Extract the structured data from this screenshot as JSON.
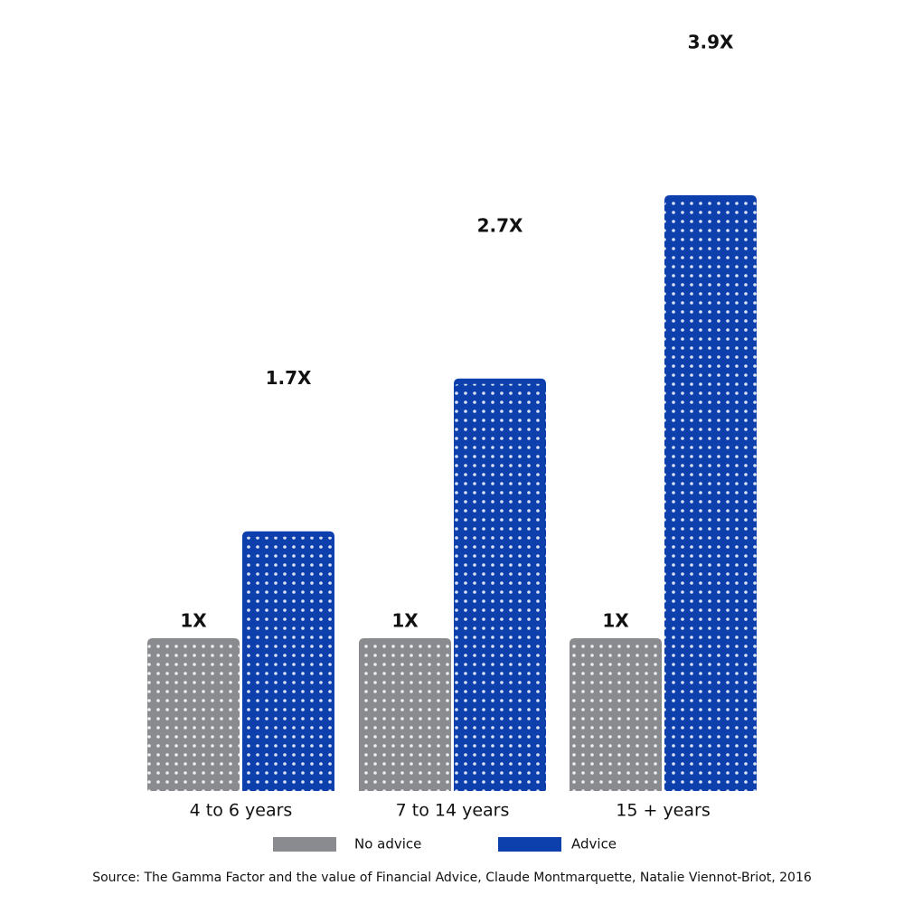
{
  "chart_data": {
    "type": "bar",
    "categories": [
      "4 to 6 years",
      "7 to 14 years",
      "15 + years"
    ],
    "series": [
      {
        "name": "No advice",
        "color": "#898b8e",
        "values": [
          1,
          1,
          1
        ],
        "value_labels": [
          "1X",
          "1X",
          "1X"
        ]
      },
      {
        "name": "Advice",
        "color": "#0e40ad",
        "values": [
          1.7,
          2.7,
          3.9
        ],
        "value_labels": [
          "1.7X",
          "2.7X",
          "3.9X"
        ]
      }
    ],
    "source": "Source: The Gamma Factor and the value of Financial Advice, Claude Montmarquette, Natalie Viennot-Briot, 2016"
  }
}
